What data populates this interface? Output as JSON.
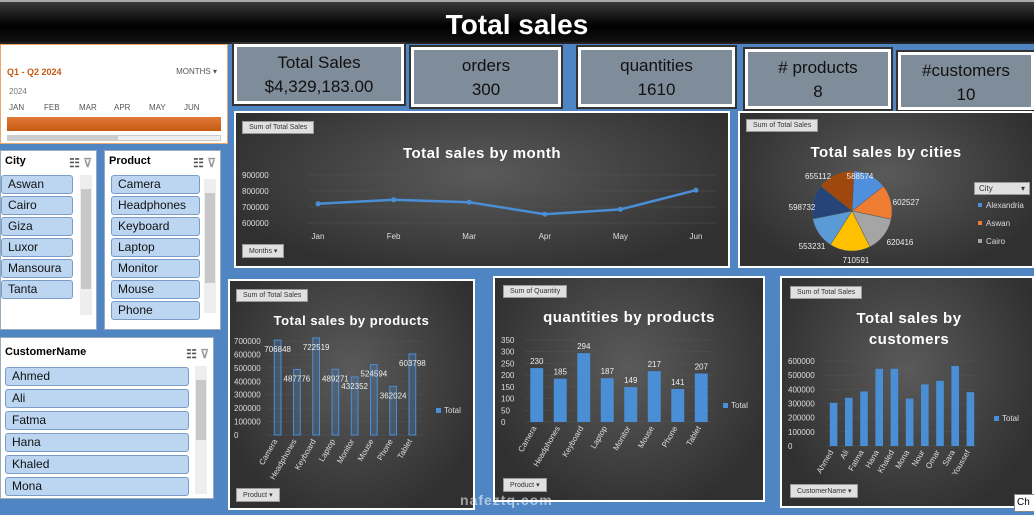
{
  "title": "Total sales",
  "kpis": [
    {
      "label": "Total Sales",
      "value": "$4,329,183.00"
    },
    {
      "label": "orders",
      "value": "300"
    },
    {
      "label": "quantities",
      "value": "1610"
    },
    {
      "label": "# products",
      "value": "8"
    },
    {
      "label": "#customers",
      "value": "10"
    }
  ],
  "timeline": {
    "range": "Q1 - Q2 2024",
    "level": "MONTHS",
    "year": "2024",
    "months": [
      "JAN",
      "FEB",
      "MAR",
      "APR",
      "MAY",
      "JUN"
    ]
  },
  "city_slicer": {
    "header": "City",
    "items": [
      "Aswan",
      "Cairo",
      "Giza",
      "Luxor",
      "Mansoura",
      "Tanta"
    ]
  },
  "product_slicer": {
    "header": "Product",
    "items": [
      "Camera",
      "Headphones",
      "Keyboard",
      "Laptop",
      "Monitor",
      "Mouse",
      "Phone"
    ]
  },
  "customer_slicer": {
    "header": "CustomerName",
    "items": [
      "Ahmed",
      "Ali",
      "Fatma",
      "Hana",
      "Khaled",
      "Mona"
    ]
  },
  "colors": {
    "bar": "#4a8fd6",
    "line": "#4a8fd6",
    "background": "#4f85c2",
    "panel": "#3c3c3c"
  },
  "watermark": "nafeztq.com",
  "corner_text": "Ch",
  "chart_data": [
    {
      "type": "line",
      "title": "Total sales by month",
      "tag": "Sum of Total Sales",
      "filter": "Months",
      "categories": [
        "Jan",
        "Feb",
        "Mar",
        "Apr",
        "May",
        "Jun"
      ],
      "values": [
        720000,
        745000,
        730000,
        655000,
        685000,
        805000
      ],
      "yticks": [
        "900000",
        "800000",
        "700000",
        "600000"
      ],
      "ylim": [
        600000,
        900000
      ]
    },
    {
      "type": "pie",
      "title": "Total sales by cities",
      "tag": "Sum of Total Sales",
      "legend_title": "City",
      "legend": [
        "Alexandria",
        "Aswan",
        "Cairo"
      ],
      "labels": [
        "588574",
        "602527",
        "620416",
        "710591",
        "553231",
        "598732",
        "655112"
      ],
      "values": [
        588574,
        602527,
        620416,
        710591,
        553231,
        598732,
        655112
      ],
      "colors": [
        "#4f8fdc",
        "#ee7d31",
        "#a5a5a5",
        "#ffc000",
        "#5b9bd5",
        "#264478",
        "#9e480e"
      ]
    },
    {
      "type": "bar",
      "title": "Total sales by products",
      "tag": "Sum of Total Sales",
      "filter": "Product",
      "legend": "Total",
      "categories": [
        "Camera",
        "Headphones",
        "Keyboard",
        "Laptop",
        "Monitor",
        "Mouse",
        "Phone",
        "Tablet"
      ],
      "values": [
        706848,
        487776,
        722519,
        489271,
        432352,
        524594,
        362024,
        603798
      ],
      "yticks": [
        "700000",
        "600000",
        "500000",
        "400000",
        "300000",
        "200000",
        "100000",
        "0"
      ],
      "ylim": [
        0,
        700000
      ]
    },
    {
      "type": "bar",
      "title": "quantities by products",
      "tag": "Sum of Quantity",
      "filter": "Product",
      "legend": "Total",
      "categories": [
        "Camera",
        "Headphones",
        "Keyboard",
        "Laptop",
        "Monitor",
        "Mouse",
        "Phone",
        "Tablet"
      ],
      "values": [
        230,
        185,
        294,
        187,
        149,
        217,
        141,
        207
      ],
      "yticks": [
        "350",
        "300",
        "250",
        "200",
        "150",
        "100",
        "50",
        "0"
      ],
      "ylim": [
        0,
        350
      ]
    },
    {
      "type": "bar",
      "title": "Total sales by customers",
      "tag": "Sum of Total Sales",
      "filter": "CustomerName",
      "legend": "Total",
      "categories": [
        "Ahmed",
        "Ali",
        "Fatma",
        "Hana",
        "Khaled",
        "Mona",
        "Nour",
        "Omar",
        "Sara",
        "Youssef"
      ],
      "values": [
        305000,
        340000,
        385000,
        545000,
        545000,
        335000,
        435000,
        460000,
        565000,
        380000
      ],
      "yticks": [
        "600000",
        "500000",
        "400000",
        "300000",
        "200000",
        "100000",
        "0"
      ],
      "ylim": [
        0,
        600000
      ]
    }
  ]
}
